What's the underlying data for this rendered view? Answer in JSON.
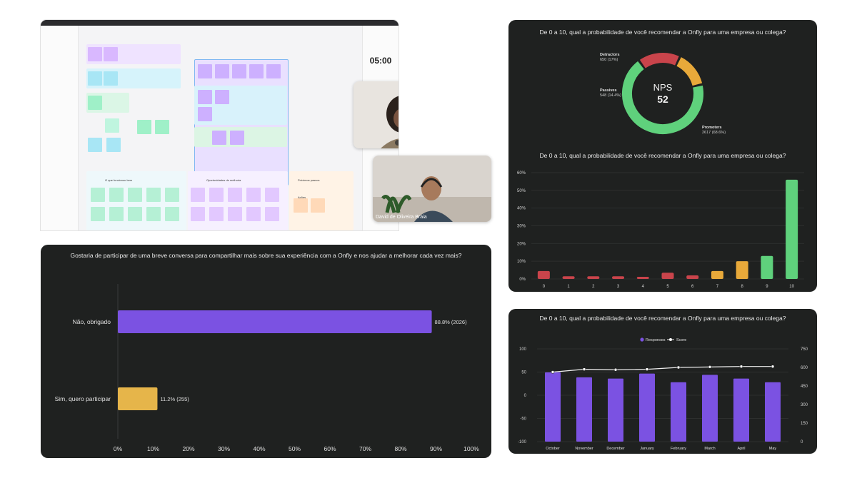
{
  "whiteboard": {
    "timer": "05:00",
    "caption_actions": "Ações",
    "sections": [
      "O que funcionou bem",
      "Oportunidades de melhoria",
      "Próximos passos"
    ]
  },
  "video_call": {
    "participant_name": "David de Oliveira Braia"
  },
  "colors": {
    "purple": "#7b52e2",
    "yellow": "#e6b54a",
    "red": "#c9444b",
    "orange": "#e8a93a",
    "green": "#5fd17c",
    "panel": "#1f2120"
  },
  "chart_data": [
    {
      "type": "bar",
      "orientation": "horizontal",
      "title": "Gostaria de participar de uma breve conversa para compartilhar mais sobre sua experiência com a Onfly e nos ajudar a melhorar cada vez mais?",
      "categories": [
        "Não, obrigado",
        "Sim, quero participar"
      ],
      "values": [
        88.8,
        11.2
      ],
      "value_labels": [
        "88.8% (2026)",
        "11.2% (255)"
      ],
      "xlim": [
        0,
        100
      ],
      "xticks": [
        "0%",
        "10%",
        "20%",
        "30%",
        "40%",
        "50%",
        "60%",
        "70%",
        "80%",
        "90%",
        "100%"
      ]
    },
    {
      "type": "pie",
      "title": "De 0 a 10, qual a probabilidade de você recomendar a Onfly para uma empresa ou colega?",
      "center_label": "NPS",
      "center_value": "52",
      "slices": [
        {
          "name": "Detractors",
          "label": "650 (17%)",
          "value": 17
        },
        {
          "name": "Passives",
          "label": "548 (14.4%)",
          "value": 14.4
        },
        {
          "name": "Promoters",
          "label": "2617 (68.6%)",
          "value": 68.6
        }
      ]
    },
    {
      "type": "bar",
      "title": "De 0 a 10, qual a probabilidade de você recomendar a Onfly para uma empresa ou colega?",
      "categories": [
        "0",
        "1",
        "2",
        "3",
        "4",
        "5",
        "6",
        "7",
        "8",
        "9",
        "10"
      ],
      "values": [
        4.5,
        1.5,
        1.5,
        1.5,
        1.2,
        3.5,
        2,
        4.5,
        10,
        13,
        56
      ],
      "ylim": [
        0,
        60
      ],
      "yticks": [
        "0%",
        "10%",
        "20%",
        "30%",
        "40%",
        "50%",
        "60%"
      ]
    },
    {
      "type": "bar",
      "title": "De 0 a 10, qual a probabilidade de você recomendar a Onfly para uma empresa ou colega?",
      "categories": [
        "October",
        "November",
        "December",
        "January",
        "February",
        "March",
        "April",
        "May"
      ],
      "series": [
        {
          "name": "Responses",
          "type": "bar",
          "values": [
            560,
            520,
            510,
            550,
            480,
            540,
            510,
            480
          ],
          "axis": "right"
        },
        {
          "name": "Score",
          "type": "line",
          "values": [
            50,
            56,
            55,
            56,
            60,
            61,
            62,
            62
          ],
          "axis": "left"
        }
      ],
      "ylim_left": [
        -100,
        100
      ],
      "yticks_left": [
        "100",
        "50",
        "0",
        "-50",
        "-100"
      ],
      "ylim_right": [
        0,
        750
      ],
      "yticks_right": [
        "750",
        "600",
        "450",
        "300",
        "150",
        "0"
      ],
      "legend": "top-center"
    }
  ]
}
